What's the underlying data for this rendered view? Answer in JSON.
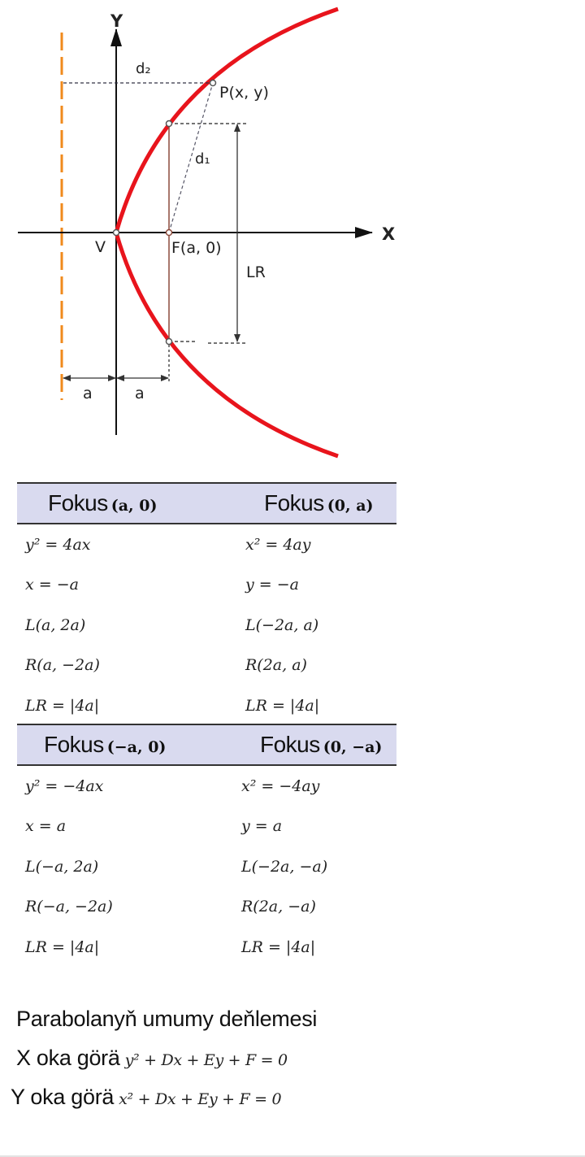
{
  "diagram": {
    "axis_y": "Y",
    "axis_x": "X",
    "d2": "d₂",
    "d1": "d₁",
    "point_p": "P(x, y)",
    "vertex": "V",
    "focus": "F(a, 0)",
    "latus_rectum": "LR",
    "dist_left": "a",
    "dist_right": "a",
    "colors": {
      "curve": "#e8141c",
      "directrix": "#f08a1c",
      "latus": "#8b4a3c",
      "axes": "#111111"
    }
  },
  "table1": {
    "headers": [
      {
        "word": "Fokus",
        "param": "(a, 0)"
      },
      {
        "word": "Fokus",
        "param": "(0, a)"
      }
    ],
    "rows": [
      [
        "y² = 4ax",
        "x² = 4ay"
      ],
      [
        "x = −a",
        "y = −a"
      ],
      [
        "L(a, 2a)",
        "L(−2a, a)"
      ],
      [
        "R(a, −2a)",
        "R(2a, a)"
      ],
      [
        "LR = |4a|",
        "LR = |4a|"
      ]
    ]
  },
  "table2": {
    "headers": [
      {
        "word": "Fokus",
        "param": "(−a, 0)"
      },
      {
        "word": "Fokus",
        "param": "(0, −a)"
      }
    ],
    "rows": [
      [
        "y² = −4ax",
        "x² = −4ay"
      ],
      [
        "x = a",
        "y = a"
      ],
      [
        "L(−a, 2a)",
        "L(−2a, −a)"
      ],
      [
        "R(−a, −2a)",
        "R(2a, −a)"
      ],
      [
        "LR = |4a|",
        "LR = |4a|"
      ]
    ]
  },
  "general": {
    "title": "Parabolanyň umumy deňlemesi",
    "x_label": "X oka görä",
    "x_eq": "y² + Dx + Ey + F = 0",
    "y_label": "Y oka görä",
    "y_eq": "x² + Dx + Ey + F = 0"
  }
}
